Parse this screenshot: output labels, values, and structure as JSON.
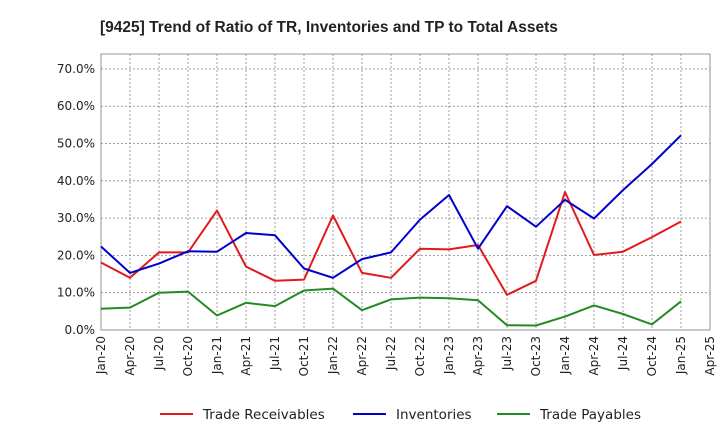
{
  "chart_data": {
    "type": "line",
    "title": "[9425]  Trend of Ratio of TR, Inventories and TP to Total Assets",
    "xlabel": "",
    "ylabel": "",
    "ylim": [
      0,
      0.74
    ],
    "y_ticks": [
      0.0,
      0.1,
      0.2,
      0.3,
      0.4,
      0.5,
      0.6,
      0.7
    ],
    "y_tick_labels": [
      "0.0%",
      "10.0%",
      "20.0%",
      "30.0%",
      "40.0%",
      "50.0%",
      "60.0%",
      "70.0%"
    ],
    "x_tick_labels": [
      "Jan-20",
      "Apr-20",
      "Jul-20",
      "Oct-20",
      "Jan-21",
      "Apr-21",
      "Jul-21",
      "Oct-21",
      "Jan-22",
      "Apr-22",
      "Jul-22",
      "Oct-22",
      "Jan-23",
      "Apr-23",
      "Jul-23",
      "Oct-23",
      "Jan-24",
      "Apr-24",
      "Jul-24",
      "Oct-24",
      "Jan-25",
      "Apr-25"
    ],
    "categories": [
      "Jan-20",
      "Apr-20",
      "Jul-20",
      "Oct-20",
      "Jan-21",
      "Apr-21",
      "Jul-21",
      "Oct-21",
      "Jan-22",
      "Apr-22",
      "Jul-22",
      "Oct-22",
      "Jan-23",
      "Apr-23",
      "Jul-23",
      "Oct-23",
      "Jan-24",
      "Apr-24",
      "Jul-24",
      "Oct-24",
      "Jan-25"
    ],
    "grid": true,
    "legend_position": "bottom",
    "series": [
      {
        "name": "Trade Receivables",
        "color": "#e31a1c",
        "values": [
          0.181,
          0.14,
          0.208,
          0.208,
          0.32,
          0.17,
          0.132,
          0.135,
          0.307,
          0.153,
          0.14,
          0.218,
          0.216,
          0.228,
          0.094,
          0.132,
          0.37,
          0.201,
          0.21,
          0.249,
          0.291
        ]
      },
      {
        "name": "Inventories",
        "color": "#0000cc",
        "values": [
          0.224,
          0.153,
          0.178,
          0.211,
          0.21,
          0.26,
          0.254,
          0.165,
          0.14,
          0.19,
          0.208,
          0.296,
          0.362,
          0.218,
          0.332,
          0.277,
          0.349,
          0.299,
          0.375,
          0.445,
          0.522
        ]
      },
      {
        "name": "Trade Payables",
        "color": "#228b22",
        "values": [
          0.057,
          0.06,
          0.1,
          0.103,
          0.039,
          0.073,
          0.064,
          0.106,
          0.111,
          0.053,
          0.082,
          0.087,
          0.085,
          0.08,
          0.013,
          0.012,
          0.036,
          0.066,
          0.043,
          0.015,
          0.077
        ]
      }
    ]
  }
}
